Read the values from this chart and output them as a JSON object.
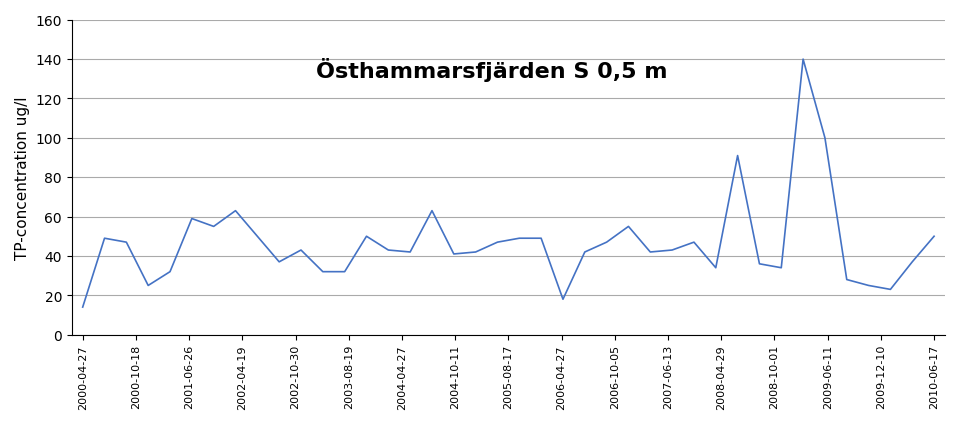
{
  "title": "Östhammarsfjärden S 0,5 m",
  "ylabel": "TP-concentration ug/l",
  "x_labels": [
    "2000-04-27",
    "2000-10-18",
    "2001-06-26",
    "2002-04-19",
    "2002-10-30",
    "2003-08-19",
    "2004-04-27",
    "2004-10-11",
    "2005-08-17",
    "2006-04-27",
    "2006-10-05",
    "2007-06-13",
    "2008-04-29",
    "2008-10-01",
    "2009-06-11",
    "2009-12-10",
    "2010-06-17"
  ],
  "values": [
    14,
    49,
    47,
    25,
    32,
    59,
    55,
    63,
    50,
    37,
    43,
    32,
    32,
    50,
    43,
    42,
    63,
    41,
    42,
    47,
    49,
    49,
    18,
    42,
    47,
    55,
    42,
    43,
    47,
    34,
    91,
    36,
    34,
    140,
    100,
    28,
    25,
    23,
    37,
    50
  ],
  "line_color": "#4472C4",
  "background_color": "#FFFFFF",
  "ylim": [
    0,
    160
  ],
  "yticks": [
    0,
    20,
    40,
    60,
    80,
    100,
    120,
    140,
    160
  ],
  "grid_color": "#AAAAAA",
  "title_fontsize": 16,
  "ylabel_fontsize": 11
}
